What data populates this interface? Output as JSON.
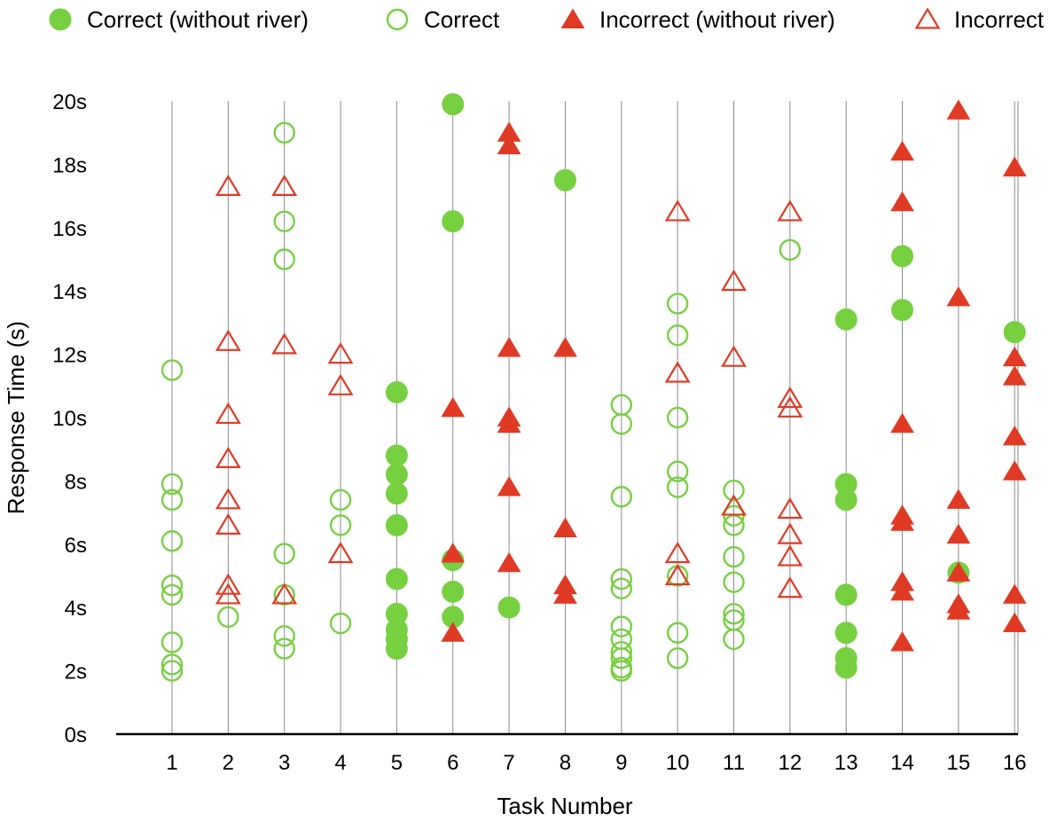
{
  "chart_data": {
    "type": "scatter",
    "xlabel": "Task Number",
    "ylabel": "Response Time (s)",
    "x_ticks": [
      "1",
      "2",
      "3",
      "4",
      "5",
      "6",
      "7",
      "8",
      "9",
      "10",
      "11",
      "12",
      "13",
      "14",
      "15",
      "16"
    ],
    "y_ticks": [
      {
        "value": 0,
        "label": "0s"
      },
      {
        "value": 2,
        "label": "2s"
      },
      {
        "value": 4,
        "label": "4s"
      },
      {
        "value": 6,
        "label": "6s"
      },
      {
        "value": 8,
        "label": "8s"
      },
      {
        "value": 10,
        "label": "10s"
      },
      {
        "value": 12,
        "label": "12s"
      },
      {
        "value": 14,
        "label": "14s"
      },
      {
        "value": 16,
        "label": "16s"
      },
      {
        "value": 18,
        "label": "18s"
      },
      {
        "value": 20,
        "label": "20s"
      }
    ],
    "xlim": [
      0,
      16
    ],
    "ylim": [
      0,
      20
    ],
    "grid": "vertical",
    "legend_position": "top",
    "series": [
      {
        "name": "Correct (without river)",
        "marker": "circle",
        "filled": true,
        "color": "#77d040",
        "points": [
          [
            5,
            10.8
          ],
          [
            5,
            8.8
          ],
          [
            5,
            8.2
          ],
          [
            5,
            7.6
          ],
          [
            5,
            6.6
          ],
          [
            5,
            4.9
          ],
          [
            5,
            3.8
          ],
          [
            5,
            3.3
          ],
          [
            5,
            3.0
          ],
          [
            5,
            2.7
          ],
          [
            6,
            19.9
          ],
          [
            6,
            16.2
          ],
          [
            6,
            5.5
          ],
          [
            6,
            4.5
          ],
          [
            6,
            3.7
          ],
          [
            7,
            4.0
          ],
          [
            8,
            17.5
          ],
          [
            13,
            13.1
          ],
          [
            13,
            7.9
          ],
          [
            13,
            7.4
          ],
          [
            13,
            4.4
          ],
          [
            13,
            3.2
          ],
          [
            13,
            2.4
          ],
          [
            13,
            2.1
          ],
          [
            14,
            15.1
          ],
          [
            14,
            13.4
          ],
          [
            15,
            5.1
          ],
          [
            16,
            12.7
          ]
        ]
      },
      {
        "name": "Correct",
        "marker": "circle",
        "filled": false,
        "color": "#77d040",
        "points": [
          [
            1,
            11.5
          ],
          [
            1,
            7.9
          ],
          [
            1,
            7.4
          ],
          [
            1,
            6.1
          ],
          [
            1,
            4.7
          ],
          [
            1,
            4.4
          ],
          [
            1,
            2.9
          ],
          [
            1,
            2.2
          ],
          [
            1,
            2.0
          ],
          [
            2,
            3.7
          ],
          [
            3,
            19.0
          ],
          [
            3,
            16.2
          ],
          [
            3,
            15.0
          ],
          [
            3,
            5.7
          ],
          [
            3,
            4.4
          ],
          [
            3,
            3.1
          ],
          [
            3,
            2.7
          ],
          [
            4,
            7.4
          ],
          [
            4,
            6.6
          ],
          [
            4,
            3.5
          ],
          [
            9,
            10.4
          ],
          [
            9,
            9.8
          ],
          [
            9,
            7.5
          ],
          [
            9,
            4.9
          ],
          [
            9,
            4.6
          ],
          [
            9,
            3.4
          ],
          [
            9,
            3.0
          ],
          [
            9,
            2.6
          ],
          [
            9,
            2.4
          ],
          [
            9,
            2.1
          ],
          [
            9,
            2.0
          ],
          [
            10,
            13.6
          ],
          [
            10,
            12.6
          ],
          [
            10,
            10.0
          ],
          [
            10,
            8.3
          ],
          [
            10,
            7.8
          ],
          [
            10,
            5.0
          ],
          [
            10,
            3.2
          ],
          [
            10,
            2.4
          ],
          [
            11,
            7.7
          ],
          [
            11,
            6.9
          ],
          [
            11,
            6.6
          ],
          [
            11,
            5.6
          ],
          [
            11,
            4.8
          ],
          [
            11,
            3.8
          ],
          [
            11,
            3.6
          ],
          [
            11,
            3.0
          ],
          [
            12,
            15.3
          ]
        ]
      },
      {
        "name": "Incorrect (without river)",
        "marker": "triangle",
        "filled": true,
        "color": "#e03a24",
        "points": [
          [
            6,
            10.3
          ],
          [
            6,
            5.7
          ],
          [
            6,
            3.2
          ],
          [
            7,
            19.0
          ],
          [
            7,
            18.6
          ],
          [
            7,
            12.2
          ],
          [
            7,
            10.0
          ],
          [
            7,
            9.8
          ],
          [
            7,
            7.8
          ],
          [
            7,
            5.4
          ],
          [
            8,
            12.2
          ],
          [
            8,
            6.5
          ],
          [
            8,
            4.7
          ],
          [
            8,
            4.4
          ],
          [
            14,
            18.4
          ],
          [
            14,
            16.8
          ],
          [
            14,
            9.8
          ],
          [
            14,
            6.9
          ],
          [
            14,
            6.7
          ],
          [
            14,
            4.8
          ],
          [
            14,
            4.5
          ],
          [
            14,
            2.9
          ],
          [
            15,
            19.7
          ],
          [
            15,
            13.8
          ],
          [
            15,
            7.4
          ],
          [
            15,
            6.3
          ],
          [
            15,
            5.1
          ],
          [
            15,
            4.1
          ],
          [
            15,
            3.9
          ],
          [
            16,
            17.9
          ],
          [
            16,
            11.9
          ],
          [
            16,
            11.3
          ],
          [
            16,
            9.4
          ],
          [
            16,
            8.3
          ],
          [
            16,
            4.4
          ],
          [
            16,
            3.5
          ]
        ]
      },
      {
        "name": "Incorrect",
        "marker": "triangle",
        "filled": false,
        "color": "#e03a24",
        "points": [
          [
            2,
            17.3
          ],
          [
            2,
            12.4
          ],
          [
            2,
            10.1
          ],
          [
            2,
            8.7
          ],
          [
            2,
            7.4
          ],
          [
            2,
            6.6
          ],
          [
            2,
            4.7
          ],
          [
            2,
            4.4
          ],
          [
            3,
            17.3
          ],
          [
            3,
            12.3
          ],
          [
            3,
            4.4
          ],
          [
            4,
            12.0
          ],
          [
            4,
            11.0
          ],
          [
            4,
            5.7
          ],
          [
            10,
            16.5
          ],
          [
            10,
            11.4
          ],
          [
            10,
            5.7
          ],
          [
            10,
            5.0
          ],
          [
            11,
            14.3
          ],
          [
            11,
            11.9
          ],
          [
            11,
            7.2
          ],
          [
            12,
            16.5
          ],
          [
            12,
            10.6
          ],
          [
            12,
            10.3
          ],
          [
            12,
            7.1
          ],
          [
            12,
            6.3
          ],
          [
            12,
            5.6
          ],
          [
            12,
            4.6
          ]
        ]
      }
    ]
  }
}
